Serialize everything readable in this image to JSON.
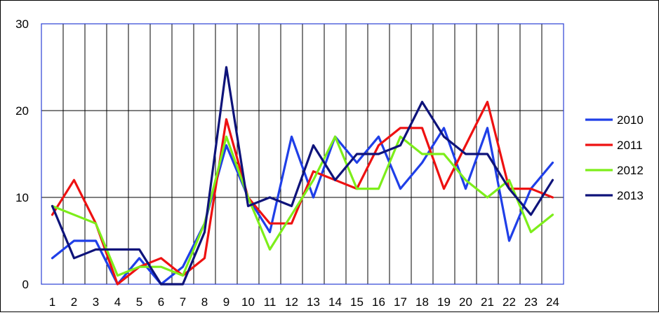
{
  "chart_data": {
    "type": "line",
    "title": "",
    "xlabel": "",
    "ylabel": "",
    "x": [
      1,
      2,
      3,
      4,
      5,
      6,
      7,
      8,
      9,
      10,
      11,
      12,
      13,
      14,
      15,
      16,
      17,
      18,
      19,
      20,
      21,
      22,
      23,
      24
    ],
    "x_tick_labels": [
      "1",
      "2",
      "3",
      "4",
      "5",
      "6",
      "7",
      "8",
      "9",
      "10",
      "11",
      "12",
      "13",
      "14",
      "15",
      "16",
      "17",
      "18",
      "19",
      "20",
      "21",
      "22",
      "23",
      "24"
    ],
    "ylim": [
      0,
      30
    ],
    "y_ticks": [
      0,
      10,
      20,
      30
    ],
    "y_tick_labels": [
      "0",
      "10",
      "20",
      "30"
    ],
    "grid": true,
    "legend_position": "right",
    "plot_border_color": "#2b3fd6",
    "series": [
      {
        "name": "2010",
        "color": "#1f3fe8",
        "values": [
          3,
          5,
          5,
          0,
          3,
          0,
          2,
          7,
          16,
          10,
          6,
          17,
          10,
          17,
          14,
          17,
          11,
          14,
          18,
          11,
          18,
          5,
          11,
          14
        ]
      },
      {
        "name": "2011",
        "color": "#ee1111",
        "values": [
          8,
          12,
          7,
          0,
          2,
          3,
          1,
          3,
          19,
          10,
          7,
          7,
          13,
          12,
          11,
          16,
          18,
          18,
          11,
          16,
          21,
          11,
          11,
          10
        ]
      },
      {
        "name": "2012",
        "color": "#7dee1a",
        "values": [
          9,
          8,
          7,
          1,
          2,
          2,
          1,
          7,
          17,
          10,
          4,
          8,
          12,
          17,
          11,
          11,
          17,
          15,
          15,
          12,
          10,
          12,
          6,
          8
        ]
      },
      {
        "name": "2013",
        "color": "#0e137a",
        "values": [
          9,
          3,
          4,
          4,
          4,
          0,
          0,
          6,
          25,
          9,
          10,
          9,
          16,
          12,
          15,
          15,
          16,
          21,
          17,
          15,
          15,
          11,
          8,
          12
        ]
      }
    ]
  }
}
